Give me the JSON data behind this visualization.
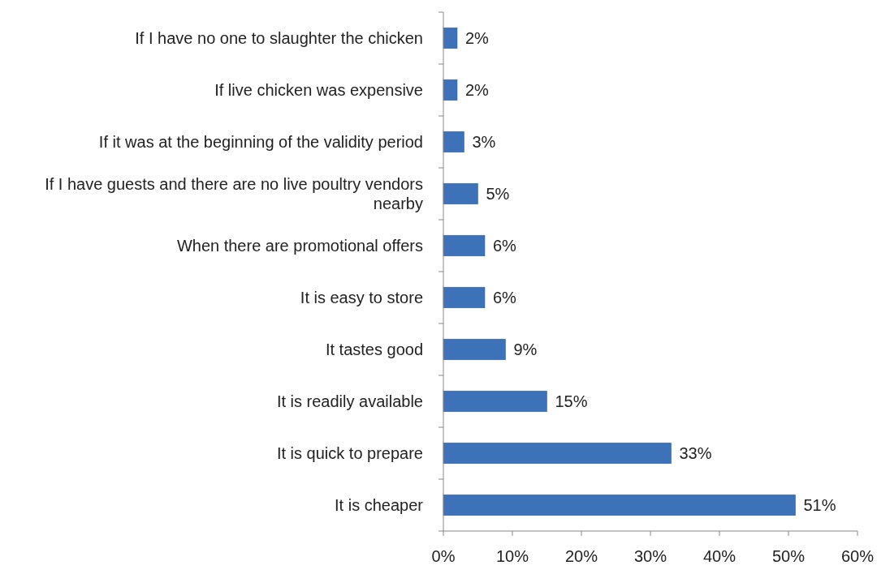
{
  "chart_data": {
    "type": "bar",
    "orientation": "horizontal",
    "categories": [
      "If I have no one to slaughter the chicken",
      "If live chicken was expensive",
      "If it was at the beginning of the validity period",
      "If I have guests and there are no live poultry vendors nearby",
      "When there are promotional offers",
      "It is easy to store",
      "It tastes good",
      "It is readily available",
      "It is quick to prepare",
      "It is cheaper"
    ],
    "values": [
      2,
      2,
      3,
      5,
      6,
      6,
      9,
      15,
      33,
      51
    ],
    "value_labels": [
      "2%",
      "2%",
      "3%",
      "5%",
      "6%",
      "6%",
      "9%",
      "15%",
      "33%",
      "51%"
    ],
    "color": "#3d72b8",
    "xlim": [
      0,
      60
    ],
    "xticks": [
      {
        "value": 0,
        "label": "0%"
      },
      {
        "value": 10,
        "label": "10%"
      },
      {
        "value": 20,
        "label": "20%"
      },
      {
        "value": 30,
        "label": "30%"
      },
      {
        "value": 40,
        "label": "40%"
      },
      {
        "value": 50,
        "label": "50%"
      },
      {
        "value": 60,
        "label": "60%"
      }
    ],
    "grid": false
  }
}
